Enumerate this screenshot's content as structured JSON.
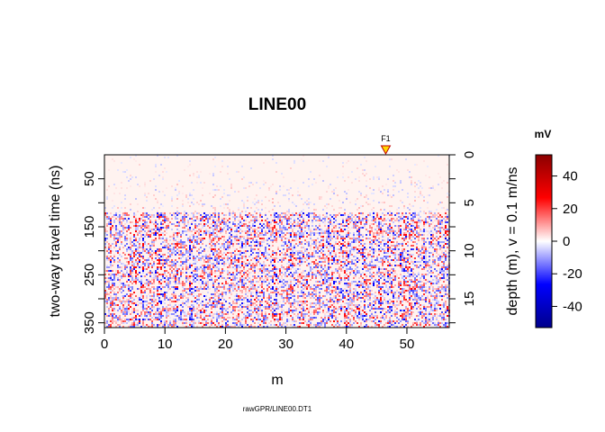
{
  "chart_data": {
    "type": "heatmap",
    "title": "LINE00",
    "xlabel": "m",
    "ylabel": "two-way travel time (ns)",
    "y2label": "depth (m),   v = 0.1 m/ns",
    "caption": "rawGPR/LINE00.DT1",
    "xlim": [
      0,
      57
    ],
    "ylim": [
      360,
      0
    ],
    "x_ticks": [
      "0",
      "10",
      "20",
      "30",
      "40",
      "50"
    ],
    "y_ticks": [
      "50",
      "150",
      "250",
      "350"
    ],
    "y_ticks_all": [
      50,
      100,
      150,
      200,
      250,
      300,
      350
    ],
    "y2_ticks": [
      "0",
      "5",
      "10",
      "15"
    ],
    "y2_ticks_all": [
      0,
      2.5,
      5,
      7.5,
      10,
      12.5,
      15,
      17.5
    ],
    "velocity_m_per_ns": 0.1,
    "fiducial": {
      "label": "F1",
      "x": 46.5
    },
    "colorbar": {
      "label": "mV",
      "range": [
        -53,
        53
      ],
      "ticks": [
        "40",
        "20",
        "0",
        "-20",
        "-40"
      ],
      "tick_values": [
        40,
        20,
        0,
        -20,
        -40
      ],
      "colors": [
        "#00008B",
        "#0000FF",
        "#FFFFFF",
        "#FF0000",
        "#8B0000"
      ]
    },
    "grid": false,
    "legend": "right"
  }
}
